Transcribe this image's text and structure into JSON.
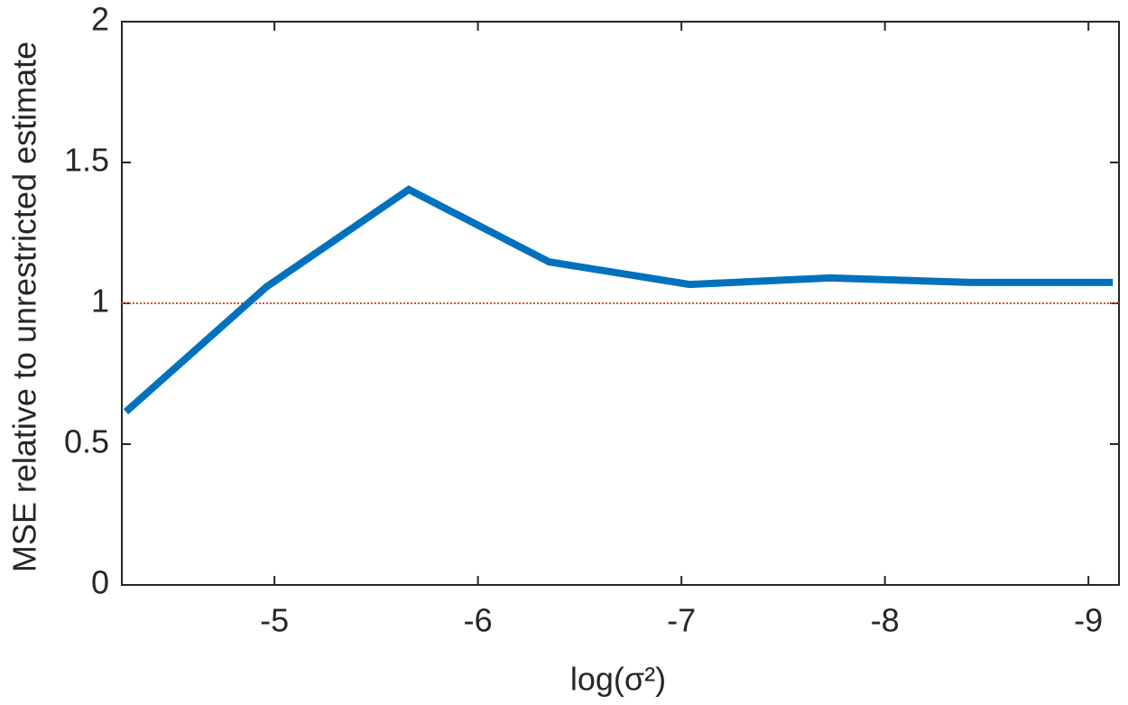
{
  "chart_data": {
    "type": "line",
    "x_label": "log(σ²)",
    "y_label": "MSE relative to unrestricted estimate",
    "x": [
      -4.27,
      -4.96,
      -5.66,
      -6.35,
      -7.04,
      -7.73,
      -8.42,
      -9.12
    ],
    "series": [
      {
        "color": "#0072bd",
        "values": [
          0.615,
          1.058,
          1.404,
          1.147,
          1.067,
          1.09,
          1.074,
          1.074
        ]
      }
    ],
    "reference_line": {
      "y": 1,
      "color": "#d95319"
    },
    "xlim": [
      -4.25,
      -9.15
    ],
    "xticks": [
      -5,
      -6,
      -7,
      -8,
      -9
    ],
    "ylim": [
      0,
      2
    ],
    "yticks": [
      0,
      0.5,
      1,
      1.5,
      2
    ]
  }
}
